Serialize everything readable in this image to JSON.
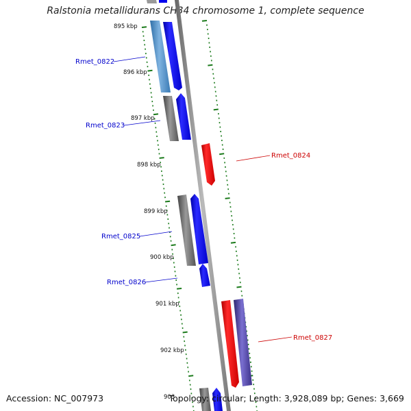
{
  "title": "Ralstonia metallidurans CH34 chromosome 1, complete sequence",
  "footer": {
    "accession": "Accession: NC_007973",
    "summary": "Topology: circular; Length: 3,928,089 bp; Genes: 3,669"
  },
  "colors": {
    "forward_gene": "#0000ee",
    "reverse_gene": "#ee0000",
    "feature_gray": "#666666",
    "feature_light_blue": "#4a8ac4",
    "feature_purple": "#4a3d99",
    "tick": "#1a7a1a",
    "backbone": "#888888",
    "label_blue": "#0000cc",
    "label_red": "#cc0000"
  },
  "ticks": [
    {
      "label": "895 kbp"
    },
    {
      "label": "896 kbp"
    },
    {
      "label": "897 kbp"
    },
    {
      "label": "898 kbp"
    },
    {
      "label": "899 kbp"
    },
    {
      "label": "900 kbp"
    },
    {
      "label": "901 kbp"
    },
    {
      "label": "902 kbp"
    },
    {
      "label": "903"
    }
  ],
  "genes": [
    {
      "label": "Rmet_0822"
    },
    {
      "label": "Rmet_0823"
    },
    {
      "label": "Rmet_0824"
    },
    {
      "label": "Rmet_0825"
    },
    {
      "label": "Rmet_0826"
    },
    {
      "label": "Rmet_0827"
    }
  ]
}
